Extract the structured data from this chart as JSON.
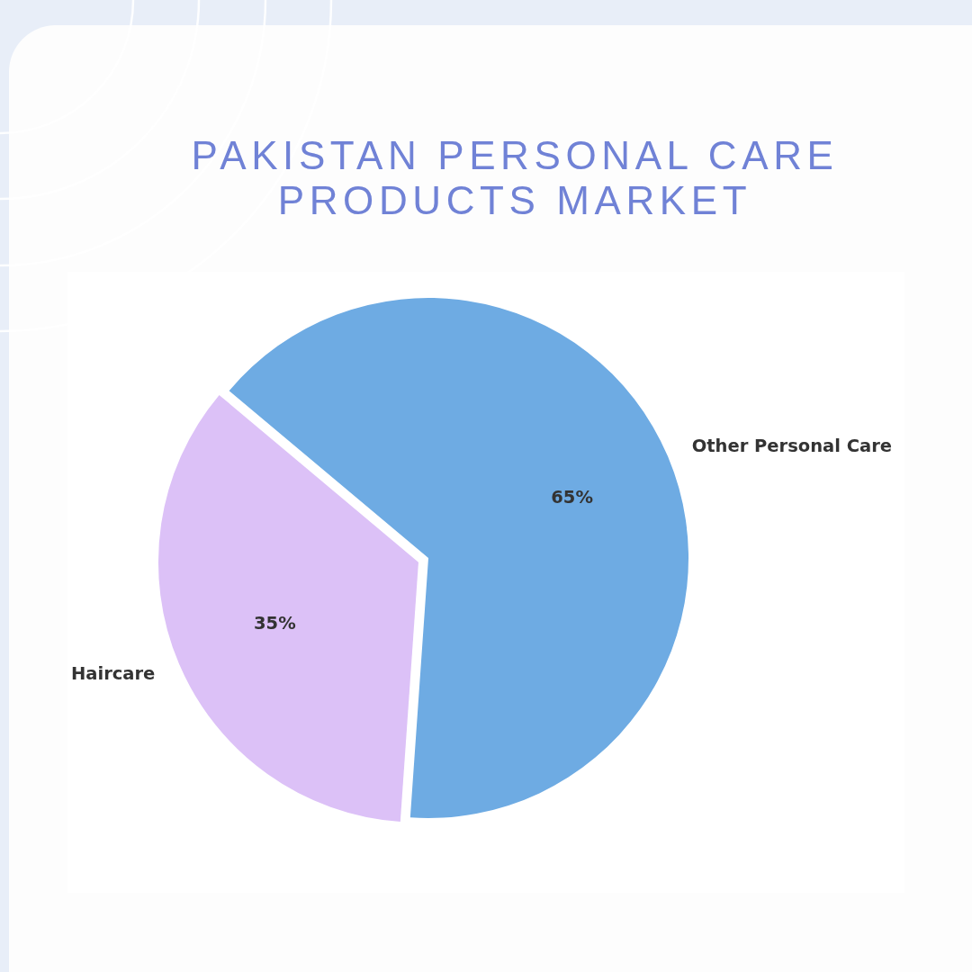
{
  "chart_data": {
    "type": "pie",
    "title": "PAKISTAN PERSONAL CARE PRODUCTS MARKET",
    "categories": [
      "Haircare",
      "Other Personal Care"
    ],
    "values": [
      35,
      65
    ],
    "colors": [
      "#dcc1f7",
      "#6eabe3"
    ],
    "value_labels": [
      "35%",
      "65%"
    ]
  }
}
